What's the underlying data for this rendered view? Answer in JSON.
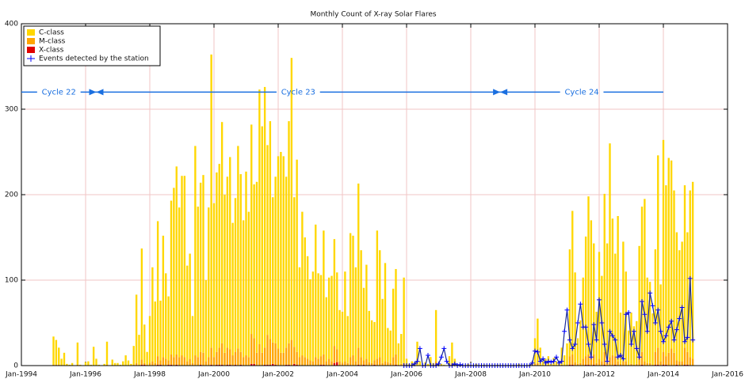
{
  "chart_data": {
    "type": "bar",
    "title": "Monthly Count of X-ray Solar Flares",
    "stacked": true,
    "grid": true,
    "legend": "upper-left",
    "xlim": [
      "1994-01",
      "2016-01"
    ],
    "xticks": [
      {
        "value": "1994-01",
        "label": "Jan-1994"
      },
      {
        "value": "1996-01",
        "label": "Jan-1996"
      },
      {
        "value": "1998-01",
        "label": "Jan-1998"
      },
      {
        "value": "2000-01",
        "label": "Jan-2000"
      },
      {
        "value": "2002-01",
        "label": "Jan-2002"
      },
      {
        "value": "2004-01",
        "label": "Jan-2004"
      },
      {
        "value": "2006-01",
        "label": "Jan-2006"
      },
      {
        "value": "2008-01",
        "label": "Jan-2008"
      },
      {
        "value": "2010-01",
        "label": "Jan-2010"
      },
      {
        "value": "2012-01",
        "label": "Jan-2012"
      },
      {
        "value": "2014-01",
        "label": "Jan-2014"
      },
      {
        "value": "2016-01",
        "label": "Jan-2016"
      }
    ],
    "ylim": [
      0,
      400
    ],
    "yticks": [
      0,
      100,
      200,
      300,
      400
    ],
    "annotations": [
      {
        "text": "Cycle 22",
        "start": "1994-01",
        "end": "1996-05",
        "y": 320
      },
      {
        "text": "Cycle 23",
        "start": "1996-05",
        "end": "2008-12",
        "y": 320
      },
      {
        "text": "Cycle 24",
        "start": "2008-12",
        "end": "2014-01",
        "y": 320
      }
    ],
    "x": [
      "1995-01",
      "1995-02",
      "1995-03",
      "1995-04",
      "1995-05",
      "1995-06",
      "1995-07",
      "1995-08",
      "1995-09",
      "1995-10",
      "1995-11",
      "1995-12",
      "1996-01",
      "1996-02",
      "1996-03",
      "1996-04",
      "1996-05",
      "1996-06",
      "1996-07",
      "1996-08",
      "1996-09",
      "1996-10",
      "1996-11",
      "1996-12",
      "1997-01",
      "1997-02",
      "1997-03",
      "1997-04",
      "1997-05",
      "1997-06",
      "1997-07",
      "1997-08",
      "1997-09",
      "1997-10",
      "1997-11",
      "1997-12",
      "1998-01",
      "1998-02",
      "1998-03",
      "1998-04",
      "1998-05",
      "1998-06",
      "1998-07",
      "1998-08",
      "1998-09",
      "1998-10",
      "1998-11",
      "1998-12",
      "1999-01",
      "1999-02",
      "1999-03",
      "1999-04",
      "1999-05",
      "1999-06",
      "1999-07",
      "1999-08",
      "1999-09",
      "1999-10",
      "1999-11",
      "1999-12",
      "2000-01",
      "2000-02",
      "2000-03",
      "2000-04",
      "2000-05",
      "2000-06",
      "2000-07",
      "2000-08",
      "2000-09",
      "2000-10",
      "2000-11",
      "2000-12",
      "2001-01",
      "2001-02",
      "2001-03",
      "2001-04",
      "2001-05",
      "2001-06",
      "2001-07",
      "2001-08",
      "2001-09",
      "2001-10",
      "2001-11",
      "2001-12",
      "2002-01",
      "2002-02",
      "2002-03",
      "2002-04",
      "2002-05",
      "2002-06",
      "2002-07",
      "2002-08",
      "2002-09",
      "2002-10",
      "2002-11",
      "2002-12",
      "2003-01",
      "2003-02",
      "2003-03",
      "2003-04",
      "2003-05",
      "2003-06",
      "2003-07",
      "2003-08",
      "2003-09",
      "2003-10",
      "2003-11",
      "2003-12",
      "2004-01",
      "2004-02",
      "2004-03",
      "2004-04",
      "2004-05",
      "2004-06",
      "2004-07",
      "2004-08",
      "2004-09",
      "2004-10",
      "2004-11",
      "2004-12",
      "2005-01",
      "2005-02",
      "2005-03",
      "2005-04",
      "2005-05",
      "2005-06",
      "2005-07",
      "2005-08",
      "2005-09",
      "2005-10",
      "2005-11",
      "2005-12",
      "2006-01",
      "2006-02",
      "2006-03",
      "2006-04",
      "2006-05",
      "2006-06",
      "2006-07",
      "2006-08",
      "2006-09",
      "2006-10",
      "2006-11",
      "2006-12",
      "2007-01",
      "2007-02",
      "2007-03",
      "2007-04",
      "2007-05",
      "2007-06",
      "2007-07",
      "2007-08",
      "2007-09",
      "2007-10",
      "2007-11",
      "2007-12",
      "2008-01",
      "2008-02",
      "2008-03",
      "2008-04",
      "2008-05",
      "2008-06",
      "2008-07",
      "2008-08",
      "2008-09",
      "2008-10",
      "2008-11",
      "2008-12",
      "2009-01",
      "2009-02",
      "2009-03",
      "2009-04",
      "2009-05",
      "2009-06",
      "2009-07",
      "2009-08",
      "2009-09",
      "2009-10",
      "2009-11",
      "2009-12",
      "2010-01",
      "2010-02",
      "2010-03",
      "2010-04",
      "2010-05",
      "2010-06",
      "2010-07",
      "2010-08",
      "2010-09",
      "2010-10",
      "2010-11",
      "2010-12",
      "2011-01",
      "2011-02",
      "2011-03",
      "2011-04",
      "2011-05",
      "2011-06",
      "2011-07",
      "2011-08",
      "2011-09",
      "2011-10",
      "2011-11",
      "2011-12",
      "2012-01",
      "2012-02",
      "2012-03",
      "2012-04",
      "2012-05",
      "2012-06",
      "2012-07",
      "2012-08",
      "2012-09",
      "2012-10",
      "2012-11",
      "2012-12",
      "2013-01",
      "2013-02",
      "2013-03",
      "2013-04",
      "2013-05",
      "2013-06",
      "2013-07",
      "2013-08",
      "2013-09",
      "2013-10",
      "2013-11",
      "2013-12",
      "2014-01",
      "2014-02",
      "2014-03",
      "2014-04",
      "2014-05",
      "2014-06",
      "2014-07",
      "2014-08",
      "2014-09",
      "2014-10",
      "2014-11",
      "2014-12"
    ],
    "series": [
      {
        "name": "X-class",
        "color": "#e00000",
        "legend_order": 2,
        "values": [
          0,
          0,
          0,
          0,
          0,
          0,
          0,
          0,
          0,
          0,
          0,
          0,
          0,
          0,
          0,
          0,
          0,
          0,
          0,
          0,
          0,
          0,
          0,
          0,
          0,
          0,
          0,
          0,
          0,
          0,
          0,
          0,
          0,
          1,
          1,
          0,
          0,
          0,
          0,
          1,
          1,
          0,
          0,
          1,
          1,
          0,
          1,
          0,
          0,
          0,
          0,
          0,
          0,
          0,
          0,
          1,
          0,
          0,
          0,
          1,
          0,
          1,
          1,
          1,
          0,
          1,
          1,
          0,
          1,
          0,
          1,
          0,
          0,
          0,
          2,
          2,
          0,
          0,
          0,
          1,
          1,
          1,
          2,
          1,
          0,
          0,
          0,
          1,
          1,
          0,
          2,
          1,
          0,
          0,
          0,
          0,
          0,
          0,
          0,
          0,
          1,
          1,
          0,
          0,
          0,
          3,
          4,
          0,
          0,
          0,
          0,
          0,
          0,
          0,
          1,
          0,
          1,
          0,
          0,
          0,
          1,
          0,
          0,
          0,
          0,
          0,
          0,
          0,
          1,
          0,
          0,
          0,
          0,
          0,
          0,
          0,
          0,
          0,
          0,
          0,
          0,
          0,
          0,
          1,
          0,
          0,
          0,
          0,
          0,
          0,
          0,
          0,
          0,
          0,
          0,
          0,
          0,
          0,
          0,
          0,
          0,
          0,
          0,
          0,
          0,
          0,
          0,
          0,
          0,
          0,
          0,
          0,
          0,
          0,
          0,
          0,
          0,
          0,
          0,
          0,
          0,
          0,
          0,
          0,
          0,
          0,
          0,
          0,
          0,
          0,
          0,
          0,
          0,
          1,
          1,
          0,
          0,
          0,
          0,
          1,
          1,
          0,
          1,
          0,
          0,
          0,
          1,
          0,
          0,
          0,
          1,
          0,
          0,
          0,
          0,
          0,
          0,
          0,
          0,
          0,
          1,
          0,
          0,
          0,
          0,
          1,
          1,
          0,
          1,
          1,
          0,
          0,
          0,
          1,
          0,
          0,
          1,
          1,
          0,
          0
        ]
      },
      {
        "name": "M-class",
        "color": "#ffa500",
        "legend_order": 1,
        "values": [
          1,
          1,
          1,
          0,
          0,
          0,
          0,
          0,
          0,
          1,
          0,
          0,
          0,
          0,
          0,
          0,
          0,
          0,
          0,
          0,
          1,
          0,
          0,
          0,
          0,
          0,
          0,
          0,
          0,
          0,
          1,
          3,
          1,
          6,
          2,
          1,
          3,
          5,
          3,
          10,
          5,
          10,
          8,
          5,
          12,
          10,
          12,
          10,
          12,
          10,
          5,
          8,
          3,
          12,
          10,
          15,
          15,
          5,
          10,
          20,
          10,
          15,
          20,
          25,
          15,
          20,
          18,
          12,
          15,
          20,
          15,
          10,
          12,
          10,
          35,
          30,
          15,
          25,
          15,
          20,
          35,
          30,
          25,
          25,
          20,
          15,
          15,
          20,
          25,
          30,
          20,
          15,
          10,
          12,
          10,
          8,
          6,
          5,
          10,
          8,
          10,
          12,
          5,
          8,
          5,
          20,
          15,
          5,
          3,
          5,
          3,
          10,
          12,
          5,
          20,
          10,
          5,
          8,
          4,
          3,
          5,
          8,
          10,
          3,
          5,
          4,
          3,
          10,
          12,
          1,
          2,
          3,
          0,
          0,
          0,
          1,
          0,
          0,
          0,
          0,
          0,
          0,
          0,
          4,
          0,
          0,
          0,
          0,
          1,
          2,
          0,
          0,
          0,
          0,
          0,
          0,
          0,
          0,
          0,
          0,
          0,
          0,
          0,
          0,
          0,
          0,
          0,
          0,
          0,
          0,
          0,
          0,
          0,
          0,
          0,
          0,
          0,
          0,
          0,
          0,
          2,
          3,
          1,
          0,
          0,
          1,
          0,
          1,
          0,
          0,
          1,
          0,
          1,
          10,
          12,
          4,
          2,
          3,
          8,
          10,
          12,
          10,
          12,
          3,
          8,
          5,
          15,
          3,
          10,
          12,
          10,
          5,
          2,
          5,
          5,
          1,
          2,
          1,
          2,
          10,
          15,
          5,
          3,
          3,
          1,
          15,
          20,
          5,
          15,
          10,
          15,
          20,
          15,
          5,
          5,
          5,
          20,
          15,
          10,
          8
        ]
      },
      {
        "name": "C-class",
        "color": "#ffd700",
        "legend_order": 0,
        "values": [
          33,
          29,
          20,
          8,
          15,
          2,
          1,
          3,
          0,
          26,
          1,
          0,
          4,
          5,
          1,
          22,
          8,
          1,
          0,
          2,
          27,
          0,
          7,
          3,
          3,
          1,
          5,
          12,
          6,
          2,
          22,
          80,
          35,
          130,
          45,
          15,
          55,
          110,
          72,
          158,
          70,
          142,
          100,
          75,
          180,
          198,
          220,
          175,
          210,
          212,
          112,
          123,
          55,
          245,
          176,
          198,
          208,
          95,
          175,
          343,
          180,
          210,
          215,
          259,
          185,
          200,
          225,
          155,
          180,
          237,
          208,
          160,
          215,
          170,
          245,
          180,
          200,
          298,
          265,
          305,
          222,
          255,
          170,
          195,
          225,
          235,
          230,
          200,
          260,
          330,
          175,
          225,
          105,
          168,
          140,
          120,
          95,
          105,
          155,
          100,
          95,
          145,
          75,
          95,
          100,
          125,
          90,
          60,
          60,
          105,
          55,
          145,
          140,
          110,
          192,
          125,
          85,
          110,
          60,
          50,
          45,
          150,
          125,
          75,
          115,
          40,
          38,
          80,
          100,
          25,
          35,
          100,
          8,
          2,
          5,
          3,
          28,
          5,
          0,
          4,
          2,
          10,
          3,
          60,
          3,
          2,
          1,
          0,
          10,
          25,
          8,
          1,
          0,
          0,
          0,
          2,
          1,
          0,
          2,
          0,
          0,
          1,
          0,
          0,
          0,
          0,
          1,
          0,
          0,
          0,
          0,
          0,
          1,
          0,
          2,
          0,
          0,
          0,
          1,
          5,
          30,
          52,
          20,
          5,
          8,
          10,
          2,
          8,
          5,
          3,
          20,
          12,
          25,
          125,
          168,
          105,
          30,
          50,
          95,
          140,
          185,
          160,
          130,
          60,
          125,
          100,
          185,
          140,
          250,
          160,
          120,
          170,
          60,
          140,
          105,
          40,
          60,
          45,
          50,
          130,
          170,
          190,
          100,
          95,
          60,
          120,
          225,
          90,
          248,
          200,
          228,
          220,
          190,
          150,
          130,
          140,
          190,
          140,
          195,
          207
        ]
      },
      {
        "name": "Events detected by the station",
        "color": "#1a2a9a",
        "type": "line",
        "legend_order": 3,
        "values": [
          null,
          null,
          null,
          null,
          null,
          null,
          null,
          null,
          null,
          null,
          null,
          null,
          null,
          null,
          null,
          null,
          null,
          null,
          null,
          null,
          null,
          null,
          null,
          null,
          null,
          null,
          null,
          null,
          null,
          null,
          null,
          null,
          null,
          null,
          null,
          null,
          null,
          null,
          null,
          null,
          null,
          null,
          null,
          null,
          null,
          null,
          null,
          null,
          null,
          null,
          null,
          null,
          null,
          null,
          null,
          null,
          null,
          null,
          null,
          null,
          null,
          null,
          null,
          null,
          null,
          null,
          null,
          null,
          null,
          null,
          null,
          null,
          null,
          null,
          null,
          null,
          null,
          null,
          null,
          null,
          null,
          null,
          null,
          null,
          null,
          null,
          null,
          null,
          null,
          null,
          null,
          null,
          null,
          null,
          null,
          null,
          null,
          null,
          null,
          null,
          null,
          null,
          null,
          null,
          null,
          null,
          null,
          null,
          null,
          null,
          null,
          null,
          null,
          null,
          null,
          null,
          null,
          null,
          null,
          null,
          null,
          null,
          null,
          null,
          null,
          null,
          null,
          null,
          null,
          null,
          null,
          0,
          0,
          0,
          0,
          2,
          5,
          20,
          0,
          0,
          12,
          0,
          0,
          0,
          2,
          10,
          20,
          5,
          0,
          0,
          2,
          0,
          1,
          0,
          0,
          0,
          0,
          0,
          0,
          0,
          0,
          0,
          0,
          0,
          0,
          0,
          0,
          0,
          0,
          0,
          0,
          0,
          0,
          0,
          0,
          0,
          0,
          0,
          0,
          3,
          17,
          16,
          5,
          8,
          3,
          5,
          4,
          5,
          10,
          3,
          5,
          40,
          65,
          30,
          20,
          25,
          50,
          72,
          45,
          45,
          25,
          10,
          48,
          30,
          77,
          50,
          25,
          5,
          40,
          35,
          30,
          10,
          12,
          8,
          60,
          62,
          25,
          40,
          20,
          10,
          75,
          60,
          40,
          85,
          70,
          50,
          65,
          40,
          28,
          35,
          45,
          52,
          30,
          42,
          55,
          68,
          28,
          33,
          102,
          30
        ]
      }
    ]
  }
}
